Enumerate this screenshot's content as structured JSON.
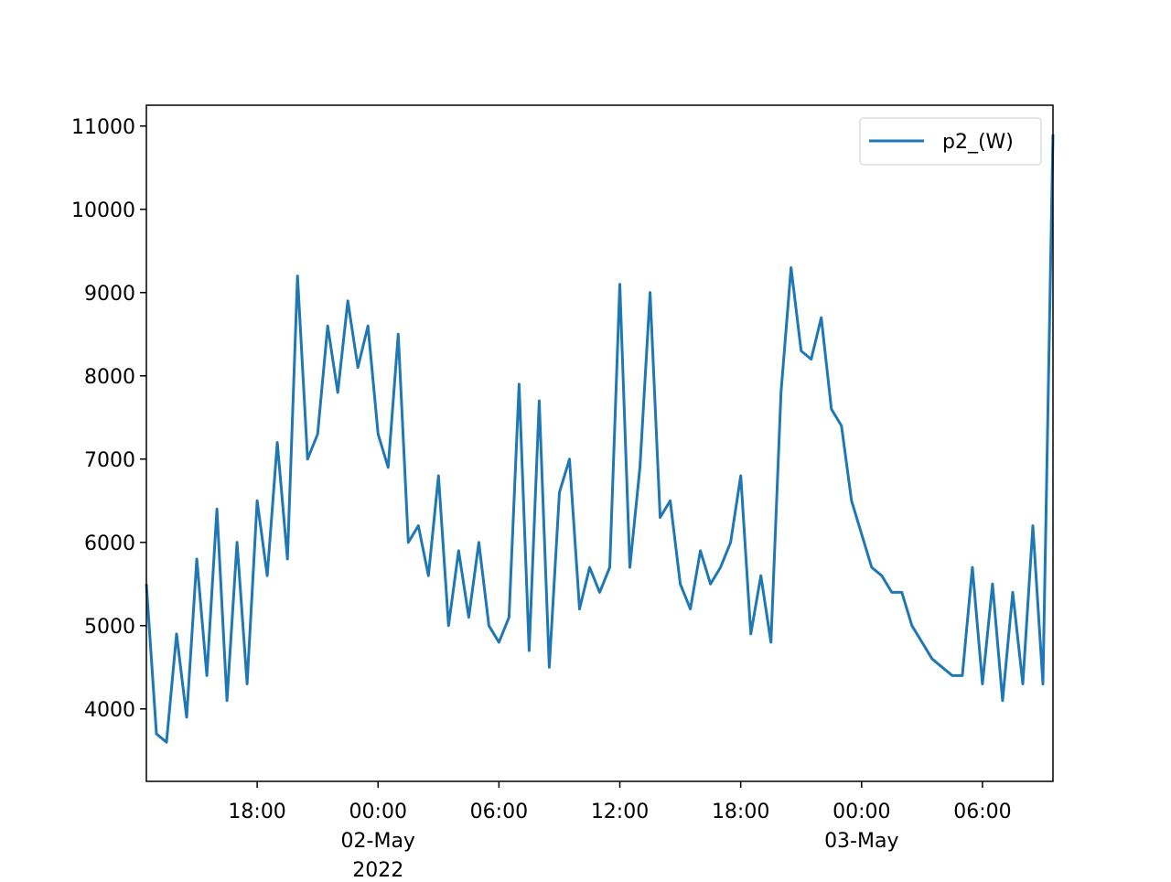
{
  "chart_data": {
    "type": "line",
    "x": [
      "2022-05-01 12:30",
      "2022-05-01 13:00",
      "2022-05-01 13:30",
      "2022-05-01 14:00",
      "2022-05-01 14:30",
      "2022-05-01 15:00",
      "2022-05-01 15:30",
      "2022-05-01 16:00",
      "2022-05-01 16:30",
      "2022-05-01 17:00",
      "2022-05-01 17:30",
      "2022-05-01 18:00",
      "2022-05-01 18:30",
      "2022-05-01 19:00",
      "2022-05-01 19:30",
      "2022-05-01 20:00",
      "2022-05-01 20:30",
      "2022-05-01 21:00",
      "2022-05-01 21:30",
      "2022-05-01 22:00",
      "2022-05-01 22:30",
      "2022-05-01 23:00",
      "2022-05-01 23:30",
      "2022-05-02 00:00",
      "2022-05-02 00:30",
      "2022-05-02 01:00",
      "2022-05-02 01:30",
      "2022-05-02 02:00",
      "2022-05-02 02:30",
      "2022-05-02 03:00",
      "2022-05-02 03:30",
      "2022-05-02 04:00",
      "2022-05-02 04:30",
      "2022-05-02 05:00",
      "2022-05-02 05:30",
      "2022-05-02 06:00",
      "2022-05-02 06:30",
      "2022-05-02 07:00",
      "2022-05-02 07:30",
      "2022-05-02 08:00",
      "2022-05-02 08:30",
      "2022-05-02 09:00",
      "2022-05-02 09:30",
      "2022-05-02 10:00",
      "2022-05-02 10:30",
      "2022-05-02 11:00",
      "2022-05-02 11:30",
      "2022-05-02 12:00",
      "2022-05-02 12:30",
      "2022-05-02 13:00",
      "2022-05-02 13:30",
      "2022-05-02 14:00",
      "2022-05-02 14:30",
      "2022-05-02 15:00",
      "2022-05-02 15:30",
      "2022-05-02 16:00",
      "2022-05-02 16:30",
      "2022-05-02 17:00",
      "2022-05-02 17:30",
      "2022-05-02 18:00",
      "2022-05-02 18:30",
      "2022-05-02 19:00",
      "2022-05-02 19:30",
      "2022-05-02 20:00",
      "2022-05-02 20:30",
      "2022-05-02 21:00",
      "2022-05-02 21:30",
      "2022-05-02 22:00",
      "2022-05-02 22:30",
      "2022-05-02 23:00",
      "2022-05-02 23:30",
      "2022-05-03 00:00",
      "2022-05-03 00:30",
      "2022-05-03 01:00",
      "2022-05-03 01:30",
      "2022-05-03 02:00",
      "2022-05-03 02:30",
      "2022-05-03 03:00",
      "2022-05-03 03:30",
      "2022-05-03 04:00",
      "2022-05-03 04:30",
      "2022-05-03 05:00",
      "2022-05-03 05:30",
      "2022-05-03 06:00",
      "2022-05-03 06:30",
      "2022-05-03 07:00",
      "2022-05-03 07:30",
      "2022-05-03 08:00",
      "2022-05-03 08:30",
      "2022-05-03 09:00",
      "2022-05-03 09:30"
    ],
    "series": [
      {
        "name": "p2_(W)",
        "color": "#1f77b4",
        "values": [
          5500,
          3700,
          3600,
          4900,
          3900,
          5800,
          4400,
          6400,
          4100,
          6000,
          4300,
          6500,
          5600,
          7200,
          5800,
          9200,
          7000,
          7300,
          8600,
          7800,
          8900,
          8100,
          8600,
          7300,
          6900,
          8500,
          6000,
          6200,
          5600,
          6800,
          5000,
          5900,
          5100,
          6000,
          5000,
          4800,
          5100,
          7900,
          4700,
          7700,
          4500,
          6600,
          7000,
          5200,
          5700,
          5400,
          5700,
          9100,
          5700,
          6900,
          9000,
          6300,
          6500,
          5500,
          5200,
          5900,
          5500,
          5700,
          6000,
          6800,
          4900,
          5600,
          4800,
          7800,
          9300,
          8300,
          8200,
          8700,
          7600,
          7400,
          6500,
          6100,
          5700,
          5600,
          5400,
          5400,
          5000,
          4800,
          4600,
          4500,
          4400,
          4400,
          5700,
          4300,
          5500,
          4100,
          5400,
          4300,
          6200,
          4300,
          10900
        ]
      }
    ],
    "xlim": [
      "2022-05-01 12:30",
      "2022-05-03 09:30"
    ],
    "xticks": [
      {
        "value": "2022-05-01 18:00",
        "label": [
          "18:00"
        ]
      },
      {
        "value": "2022-05-02 00:00",
        "label": [
          "00:00",
          "02-May",
          "2022"
        ]
      },
      {
        "value": "2022-05-02 06:00",
        "label": [
          "06:00"
        ]
      },
      {
        "value": "2022-05-02 12:00",
        "label": [
          "12:00"
        ]
      },
      {
        "value": "2022-05-02 18:00",
        "label": [
          "18:00"
        ]
      },
      {
        "value": "2022-05-03 00:00",
        "label": [
          "00:00",
          "03-May"
        ]
      },
      {
        "value": "2022-05-03 06:00",
        "label": [
          "06:00"
        ]
      }
    ],
    "ylim": [
      3130,
      11250
    ],
    "yticks": [
      4000,
      5000,
      6000,
      7000,
      8000,
      9000,
      10000,
      11000
    ],
    "legend": "upper right"
  }
}
